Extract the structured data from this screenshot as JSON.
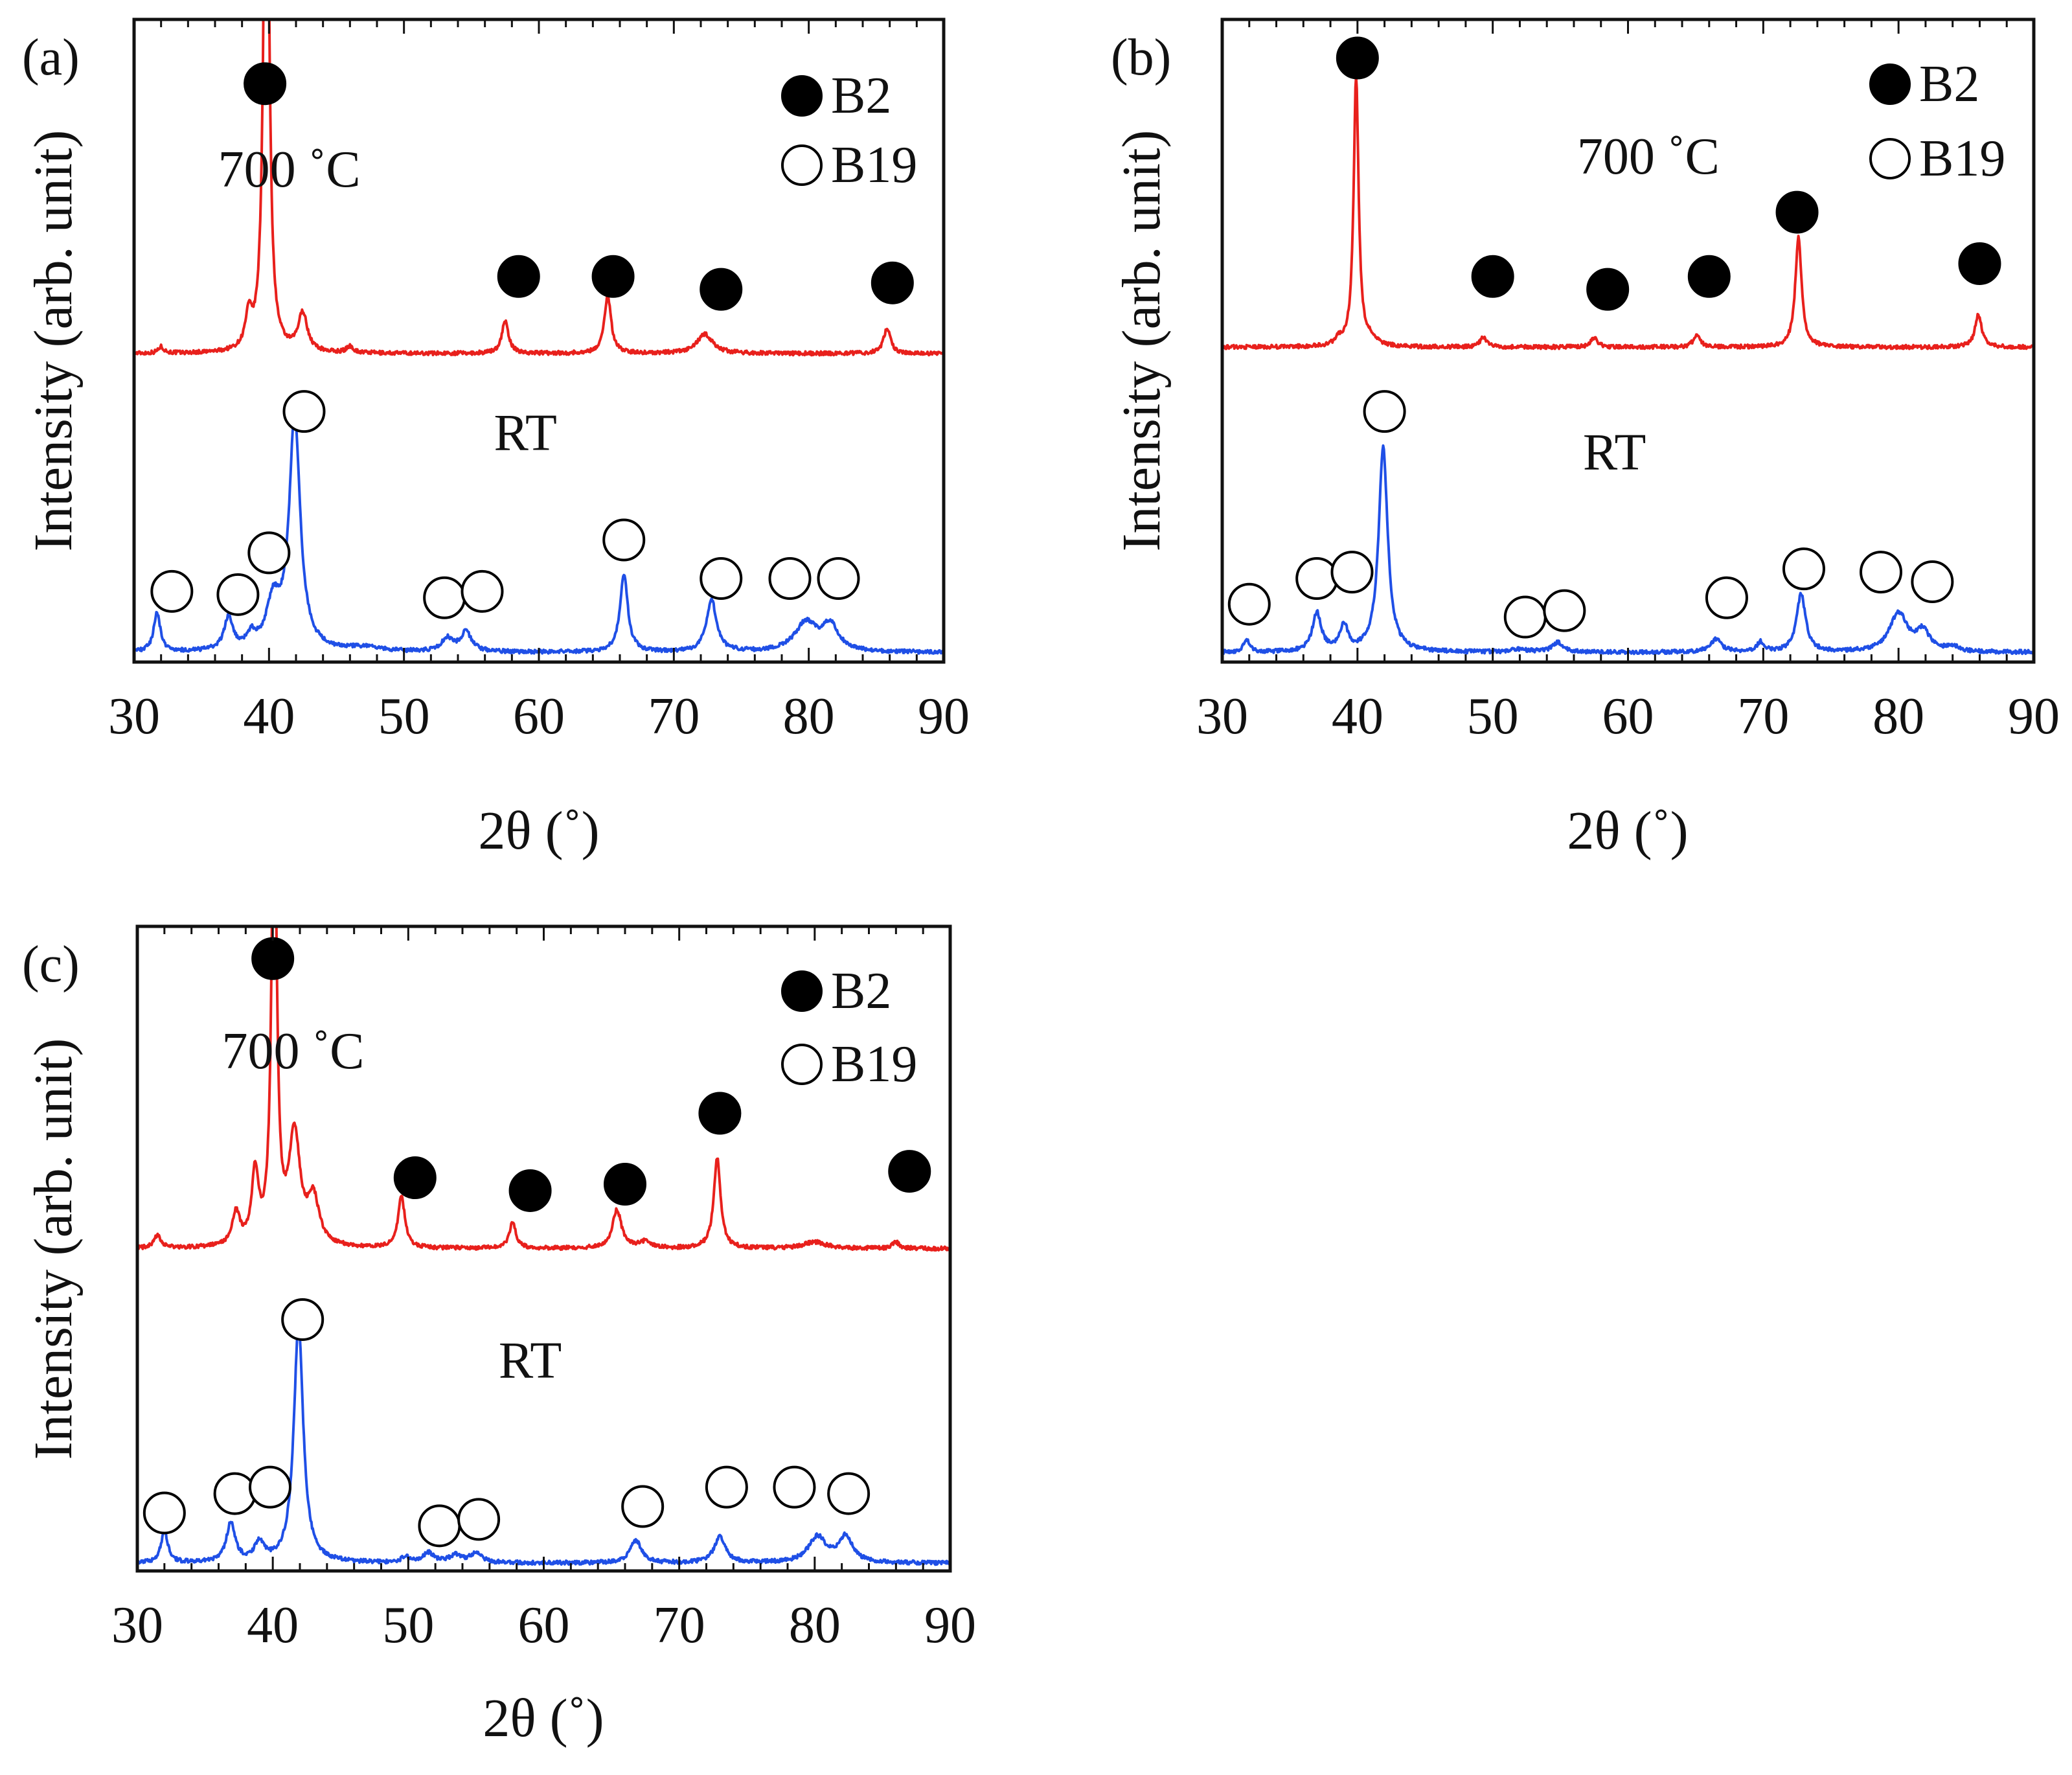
{
  "chart_data": [
    {
      "type": "line",
      "panel_label": "(a)",
      "xlabel": "2θ (˚)",
      "ylabel": "Intensity (arb. unit)",
      "xlim": [
        30,
        90
      ],
      "xticks": [
        "30",
        "40",
        "50",
        "60",
        "70",
        "80",
        "90"
      ],
      "legend": {
        "placement": "top-right",
        "items": [
          {
            "marker": "filled-circle",
            "label": "B2"
          },
          {
            "marker": "open-circle",
            "label": "B19"
          }
        ]
      },
      "series": [
        {
          "name": "700 ˚C",
          "label": "700 ˚C",
          "color": "#e8201c",
          "baseline": 0.48,
          "label_at": [
            41.5,
            0.74
          ],
          "peaks": [
            [
              32,
              0.01,
              0.25
            ],
            [
              38.5,
              0.05,
              0.3
            ],
            [
              39.8,
              1.05,
              0.22
            ],
            [
              42.5,
              0.06,
              0.4
            ],
            [
              46,
              0.01,
              0.3
            ],
            [
              57.5,
              0.05,
              0.3
            ],
            [
              65.1,
              0.09,
              0.3
            ],
            [
              72.3,
              0.03,
              0.7
            ],
            [
              85.8,
              0.04,
              0.3
            ]
          ],
          "markers": [
            {
              "x": 39.7,
              "y": 0.9,
              "type": "B2"
            },
            {
              "x": 58.5,
              "y": 0.6,
              "type": "B2"
            },
            {
              "x": 65.5,
              "y": 0.6,
              "type": "B2"
            },
            {
              "x": 73.5,
              "y": 0.58,
              "type": "B2"
            },
            {
              "x": 86.2,
              "y": 0.59,
              "type": "B2"
            }
          ]
        },
        {
          "name": "RT",
          "label": "RT",
          "color": "#1f4fe6",
          "baseline": 0.015,
          "label_at": [
            59,
            0.33
          ],
          "peaks": [
            [
              31.7,
              0.06,
              0.3
            ],
            [
              37,
              0.05,
              0.4
            ],
            [
              38.7,
              0.02,
              0.4
            ],
            [
              40.3,
              0.07,
              0.6
            ],
            [
              41.9,
              0.36,
              0.5
            ],
            [
              47,
              0.006,
              1.5
            ],
            [
              53.2,
              0.02,
              0.5
            ],
            [
              54.6,
              0.03,
              0.5
            ],
            [
              66.3,
              0.12,
              0.35
            ],
            [
              72.8,
              0.08,
              0.45
            ],
            [
              79.8,
              0.045,
              1.0
            ],
            [
              81.6,
              0.04,
              0.7
            ]
          ],
          "markers": [
            {
              "x": 32.8,
              "y": 0.11,
              "type": "B19"
            },
            {
              "x": 37.7,
              "y": 0.105,
              "type": "B19"
            },
            {
              "x": 40.0,
              "y": 0.17,
              "type": "B19"
            },
            {
              "x": 42.6,
              "y": 0.39,
              "type": "B19"
            },
            {
              "x": 53.0,
              "y": 0.1,
              "type": "B19"
            },
            {
              "x": 55.8,
              "y": 0.11,
              "type": "B19"
            },
            {
              "x": 66.3,
              "y": 0.19,
              "type": "B19"
            },
            {
              "x": 73.5,
              "y": 0.13,
              "type": "B19"
            },
            {
              "x": 78.6,
              "y": 0.13,
              "type": "B19"
            },
            {
              "x": 82.2,
              "y": 0.13,
              "type": "B19"
            }
          ]
        }
      ]
    },
    {
      "type": "line",
      "panel_label": "(b)",
      "xlabel": "2θ (˚)",
      "ylabel": "Intensity (arb. unit)",
      "xlim": [
        30,
        90
      ],
      "xticks": [
        "30",
        "40",
        "50",
        "60",
        "70",
        "80",
        "90"
      ],
      "legend": {
        "placement": "top-right",
        "items": [
          {
            "marker": "filled-circle",
            "label": "B2"
          },
          {
            "marker": "open-circle",
            "label": "B19"
          }
        ]
      },
      "series": [
        {
          "name": "700 ˚C",
          "label": "700 ˚C",
          "color": "#e8201c",
          "baseline": 0.49,
          "label_at": [
            61.5,
            0.76
          ],
          "peaks": [
            [
              38.6,
              0.01,
              0.3
            ],
            [
              39.9,
              0.42,
              0.22
            ],
            [
              41,
              0.01,
              0.5
            ],
            [
              49.3,
              0.015,
              0.3
            ],
            [
              57.5,
              0.015,
              0.3
            ],
            [
              65.1,
              0.02,
              0.3
            ],
            [
              72.6,
              0.17,
              0.28
            ],
            [
              85.9,
              0.05,
              0.3
            ]
          ],
          "markers": [
            {
              "x": 40.0,
              "y": 0.94,
              "type": "B2"
            },
            {
              "x": 50.0,
              "y": 0.6,
              "type": "B2"
            },
            {
              "x": 58.5,
              "y": 0.58,
              "type": "B2"
            },
            {
              "x": 66.0,
              "y": 0.6,
              "type": "B2"
            },
            {
              "x": 72.5,
              "y": 0.7,
              "type": "B2"
            },
            {
              "x": 86.0,
              "y": 0.62,
              "type": "B2"
            }
          ]
        },
        {
          "name": "RT",
          "label": "RT",
          "color": "#1f4fe6",
          "baseline": 0.015,
          "label_at": [
            59,
            0.3
          ],
          "peaks": [
            [
              31.8,
              0.02,
              0.25
            ],
            [
              37,
              0.06,
              0.4
            ],
            [
              39,
              0.04,
              0.35
            ],
            [
              41.9,
              0.32,
              0.4
            ],
            [
              52,
              0.004,
              0.8
            ],
            [
              54.8,
              0.015,
              0.5
            ],
            [
              66.5,
              0.02,
              0.5
            ],
            [
              69.8,
              0.015,
              0.3
            ],
            [
              72.8,
              0.09,
              0.4
            ],
            [
              80,
              0.06,
              0.8
            ],
            [
              81.8,
              0.03,
              0.6
            ],
            [
              84,
              0.008,
              0.5
            ]
          ],
          "markers": [
            {
              "x": 32.0,
              "y": 0.09,
              "type": "B19"
            },
            {
              "x": 37.0,
              "y": 0.13,
              "type": "B19"
            },
            {
              "x": 39.6,
              "y": 0.14,
              "type": "B19"
            },
            {
              "x": 42.0,
              "y": 0.39,
              "type": "B19"
            },
            {
              "x": 52.4,
              "y": 0.07,
              "type": "B19"
            },
            {
              "x": 55.3,
              "y": 0.08,
              "type": "B19"
            },
            {
              "x": 67.3,
              "y": 0.1,
              "type": "B19"
            },
            {
              "x": 73.0,
              "y": 0.145,
              "type": "B19"
            },
            {
              "x": 78.7,
              "y": 0.14,
              "type": "B19"
            },
            {
              "x": 82.5,
              "y": 0.125,
              "type": "B19"
            }
          ]
        }
      ]
    },
    {
      "type": "line",
      "panel_label": "(c)",
      "xlabel": "2θ (˚)",
      "ylabel": "Intensity (arb. unit)",
      "xlim": [
        30,
        90
      ],
      "xticks": [
        "30",
        "40",
        "50",
        "60",
        "70",
        "80",
        "90"
      ],
      "legend": {
        "placement": "top-right",
        "items": [
          {
            "marker": "filled-circle",
            "label": "B2"
          },
          {
            "marker": "open-circle",
            "label": "B19"
          }
        ]
      },
      "series": [
        {
          "name": "700 ˚C",
          "label": "700 ˚C",
          "color": "#e8201c",
          "baseline": 0.5,
          "label_at": [
            41.5,
            0.78
          ],
          "peaks": [
            [
              31.5,
              0.02,
              0.3
            ],
            [
              37.3,
              0.05,
              0.35
            ],
            [
              38.7,
              0.11,
              0.3
            ],
            [
              40.1,
              0.75,
              0.22
            ],
            [
              41.6,
              0.17,
              0.5
            ],
            [
              43,
              0.07,
              0.5
            ],
            [
              49.5,
              0.08,
              0.3
            ],
            [
              57.7,
              0.04,
              0.3
            ],
            [
              65.4,
              0.06,
              0.4
            ],
            [
              67.5,
              0.01,
              0.5
            ],
            [
              72.8,
              0.14,
              0.3
            ],
            [
              80,
              0.01,
              1
            ],
            [
              86,
              0.01,
              0.3
            ]
          ],
          "markers": [
            {
              "x": 40.0,
              "y": 0.95,
              "type": "B2"
            },
            {
              "x": 50.5,
              "y": 0.61,
              "type": "B2"
            },
            {
              "x": 59.0,
              "y": 0.59,
              "type": "B2"
            },
            {
              "x": 66.0,
              "y": 0.6,
              "type": "B2"
            },
            {
              "x": 73.0,
              "y": 0.71,
              "type": "B2"
            },
            {
              "x": 87.0,
              "y": 0.62,
              "type": "B2"
            }
          ]
        },
        {
          "name": "RT",
          "label": "RT",
          "color": "#1f4fe6",
          "baseline": 0.012,
          "label_at": [
            59,
            0.3
          ],
          "peaks": [
            [
              32,
              0.05,
              0.3
            ],
            [
              36.9,
              0.06,
              0.4
            ],
            [
              39,
              0.03,
              0.4
            ],
            [
              41.9,
              0.37,
              0.42
            ],
            [
              49.8,
              0.01,
              0.3
            ],
            [
              51.5,
              0.015,
              0.5
            ],
            [
              53.5,
              0.012,
              0.5
            ],
            [
              55,
              0.015,
              0.5
            ],
            [
              66.8,
              0.035,
              0.5
            ],
            [
              73,
              0.04,
              0.5
            ],
            [
              80.2,
              0.04,
              0.8
            ],
            [
              82.3,
              0.04,
              0.6
            ]
          ],
          "markers": [
            {
              "x": 32.0,
              "y": 0.09,
              "type": "B19"
            },
            {
              "x": 37.2,
              "y": 0.12,
              "type": "B19"
            },
            {
              "x": 39.8,
              "y": 0.13,
              "type": "B19"
            },
            {
              "x": 42.2,
              "y": 0.39,
              "type": "B19"
            },
            {
              "x": 52.3,
              "y": 0.07,
              "type": "B19"
            },
            {
              "x": 55.2,
              "y": 0.08,
              "type": "B19"
            },
            {
              "x": 67.3,
              "y": 0.1,
              "type": "B19"
            },
            {
              "x": 73.5,
              "y": 0.13,
              "type": "B19"
            },
            {
              "x": 78.5,
              "y": 0.13,
              "type": "B19"
            },
            {
              "x": 82.5,
              "y": 0.12,
              "type": "B19"
            }
          ]
        }
      ]
    }
  ]
}
